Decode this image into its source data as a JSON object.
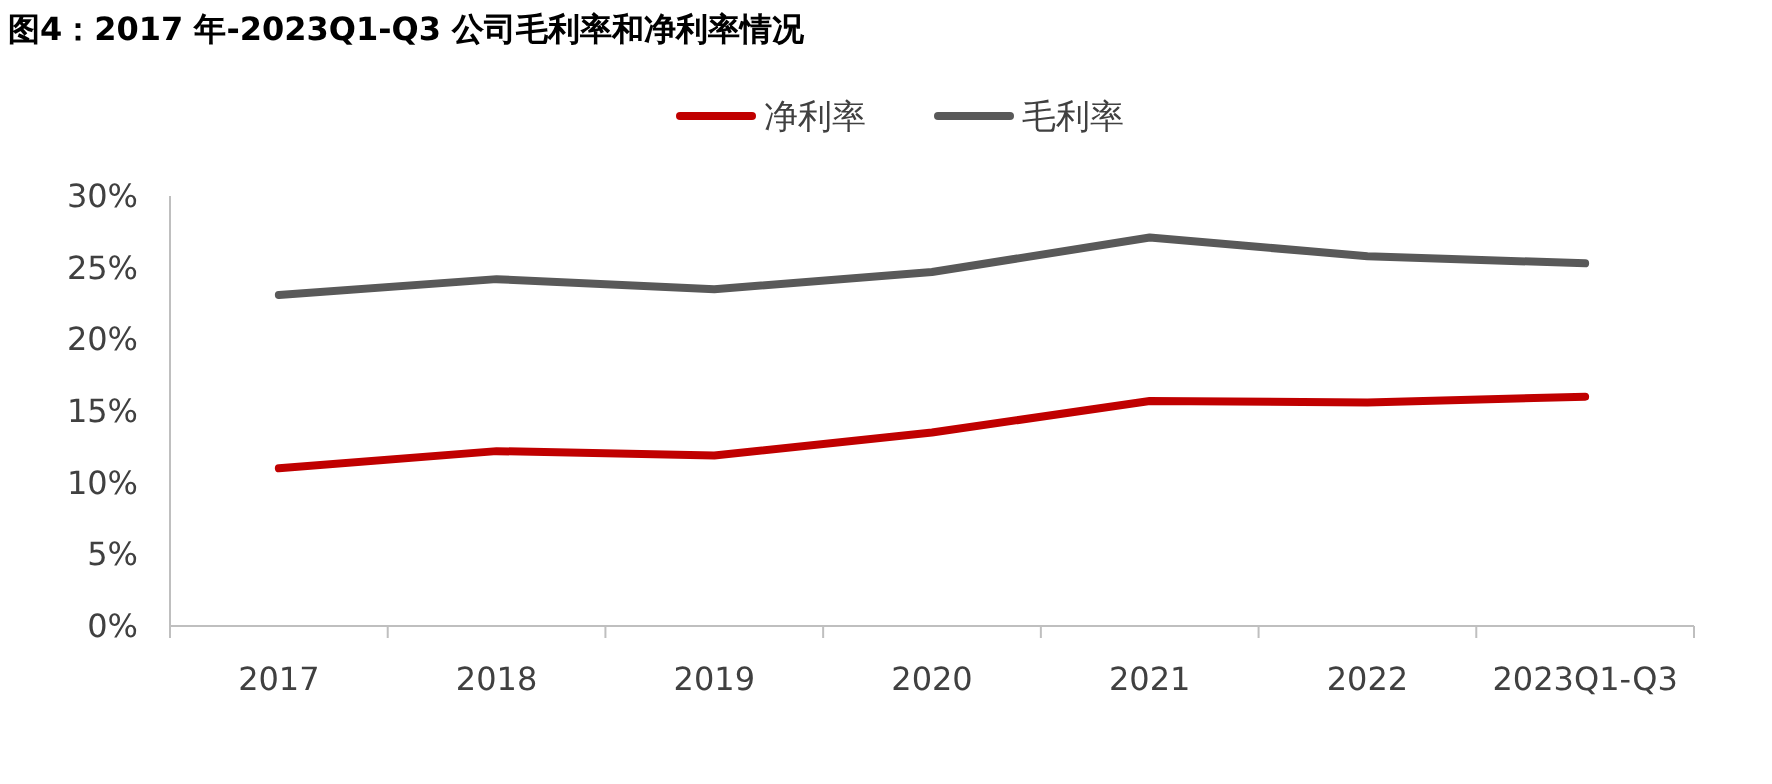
{
  "chart_data": {
    "type": "line",
    "title": "图4：2017 年-2023Q1-Q3 公司毛利率和净利率情况",
    "categories": [
      "2017",
      "2018",
      "2019",
      "2020",
      "2021",
      "2022",
      "2023Q1-Q3"
    ],
    "series": [
      {
        "name": "净利率",
        "color": "#c00000",
        "values": [
          11.0,
          12.2,
          11.9,
          13.5,
          15.7,
          15.6,
          16.0
        ]
      },
      {
        "name": "毛利率",
        "color": "#595959",
        "values": [
          23.1,
          24.2,
          23.5,
          24.7,
          27.1,
          25.8,
          25.3
        ]
      }
    ],
    "ylim": [
      0,
      30
    ],
    "yticks": [
      {
        "value": 0,
        "label": "0%"
      },
      {
        "value": 5,
        "label": "5%"
      },
      {
        "value": 10,
        "label": "10%"
      },
      {
        "value": 15,
        "label": "15%"
      },
      {
        "value": 20,
        "label": "20%"
      },
      {
        "value": 25,
        "label": "25%"
      },
      {
        "value": 30,
        "label": "30%"
      }
    ],
    "legend": "top",
    "grid": false,
    "marker": "none",
    "line_style": "solid"
  }
}
